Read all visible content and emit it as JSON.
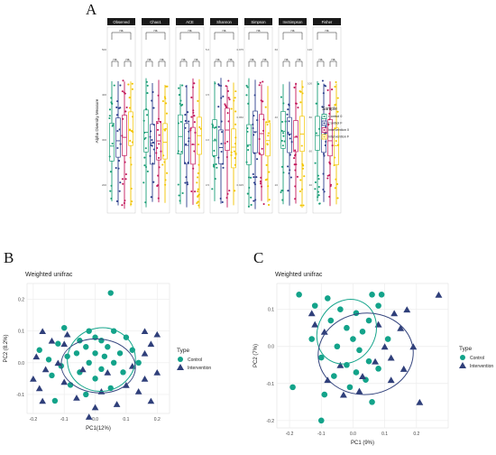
{
  "panel_letters": {
    "a": "A",
    "b": "B",
    "c": "C"
  },
  "colors": {
    "control_0": "#1b9e77",
    "control_f": "#2c3e8c",
    "intervention_0": "#c2185b",
    "intervention_f": "#f2c500",
    "control": "#13a38a",
    "intervention": "#2f3f7a",
    "strip": "#1a1a1a",
    "grid": "#ececec",
    "ellipse_control": "#17a58c",
    "ellipse_intervention": "#36467f"
  },
  "chart_data": [
    {
      "type": "box",
      "ylabel": "Alpha Diversity Measure",
      "panels": [
        {
          "name": "Observed",
          "sig": [
            "ns",
            "ns",
            "ns"
          ],
          "yticks": [
            "500",
            "400",
            "300",
            "200"
          ]
        },
        {
          "name": "Chao1",
          "sig": [
            "ns",
            "ns",
            "ns"
          ],
          "yticks": []
        },
        {
          "name": "ACE",
          "sig": [
            "ns",
            "ns",
            "ns"
          ],
          "yticks": []
        },
        {
          "name": "Shannon",
          "sig": [
            "ns",
            "ns",
            "ns"
          ],
          "yticks": [
            "5.0",
            "4.5",
            "4.0",
            "3.5"
          ]
        },
        {
          "name": "Simpson",
          "sig": [
            "ns",
            "ns",
            "ns"
          ],
          "yticks": [
            "0.975",
            "0.950",
            "0.925"
          ]
        },
        {
          "name": "InvSimpson",
          "sig": [
            "ns",
            "ns",
            "ns"
          ],
          "yticks": [
            "60",
            "40",
            "20"
          ]
        },
        {
          "name": "Fisher",
          "sig": [
            "ns",
            "ns",
            "ns"
          ],
          "yticks": [
            "120",
            "100",
            "80",
            "60",
            "40"
          ]
        }
      ],
      "legend_title": "Sample",
      "legend": [
        "Control 0",
        "Control F",
        "Intervention 0",
        "Intervention F"
      ]
    },
    {
      "type": "scatter",
      "title": "Weighted unifrac",
      "xlabel": "PC1(12%)",
      "ylabel": "PC2 (8.2%)",
      "xticks": [
        "-0.2",
        "-0.1",
        "0.0",
        "0.1",
        "0.2"
      ],
      "yticks": [
        "0.2",
        "0.1",
        "0.0",
        "-0.1"
      ],
      "xlim": [
        -0.22,
        0.24
      ],
      "ylim": [
        -0.16,
        0.25
      ],
      "legend_title": "Type",
      "legend": [
        "Control",
        "Intervention"
      ],
      "series": [
        {
          "name": "Control",
          "points": [
            [
              0.05,
              0.22
            ],
            [
              -0.1,
              0.11
            ],
            [
              -0.02,
              0.1
            ],
            [
              0.06,
              0.1
            ],
            [
              0.0,
              0.08
            ],
            [
              -0.05,
              0.07
            ],
            [
              0.02,
              0.07
            ],
            [
              0.1,
              0.08
            ],
            [
              -0.12,
              0.06
            ],
            [
              -0.03,
              0.05
            ],
            [
              0.04,
              0.05
            ],
            [
              0.12,
              0.04
            ],
            [
              -0.18,
              0.04
            ],
            [
              -0.06,
              0.03
            ],
            [
              0.0,
              0.03
            ],
            [
              0.08,
              0.03
            ],
            [
              -0.09,
              0.02
            ],
            [
              0.03,
              0.02
            ],
            [
              -0.15,
              0.01
            ],
            [
              -0.02,
              0.0
            ],
            [
              0.06,
              0.0
            ],
            [
              0.14,
              0.0
            ],
            [
              -0.11,
              -0.01
            ],
            [
              0.02,
              -0.02
            ],
            [
              -0.05,
              -0.03
            ],
            [
              0.09,
              -0.03
            ],
            [
              -0.14,
              -0.04
            ],
            [
              0.0,
              -0.05
            ],
            [
              -0.08,
              -0.07
            ],
            [
              0.05,
              -0.08
            ],
            [
              -0.03,
              -0.1
            ],
            [
              -0.13,
              -0.12
            ]
          ]
        },
        {
          "name": "Intervention",
          "points": [
            [
              -0.17,
              0.1
            ],
            [
              -0.14,
              0.07
            ],
            [
              -0.09,
              0.09
            ],
            [
              0.16,
              0.1
            ],
            [
              0.2,
              0.09
            ],
            [
              -0.1,
              0.06
            ],
            [
              0.18,
              0.06
            ],
            [
              -0.19,
              0.02
            ],
            [
              -0.12,
              0.0
            ],
            [
              0.16,
              0.03
            ],
            [
              -0.16,
              -0.02
            ],
            [
              0.12,
              -0.01
            ],
            [
              0.2,
              -0.03
            ],
            [
              -0.2,
              -0.05
            ],
            [
              -0.04,
              -0.02
            ],
            [
              0.04,
              -0.03
            ],
            [
              0.16,
              -0.05
            ],
            [
              -0.1,
              -0.06
            ],
            [
              0.1,
              -0.07
            ],
            [
              -0.18,
              -0.08
            ],
            [
              0.02,
              -0.09
            ],
            [
              0.14,
              -0.09
            ],
            [
              -0.06,
              -0.11
            ],
            [
              0.07,
              -0.13
            ],
            [
              -0.17,
              -0.12
            ],
            [
              0.0,
              -0.14
            ],
            [
              0.18,
              -0.12
            ],
            [
              -0.02,
              -0.17
            ]
          ]
        }
      ],
      "ellipses": [
        {
          "name": "Control",
          "cx": 0.02,
          "cy": 0.01,
          "rx": 0.11,
          "ry": 0.1,
          "rot": -10
        },
        {
          "name": "Intervention",
          "cx": 0.01,
          "cy": -0.01,
          "rx": 0.12,
          "ry": 0.085,
          "rot": 5
        }
      ]
    },
    {
      "type": "scatter",
      "title": "Weighted unifrac",
      "xlabel": "PC1 (9%)",
      "ylabel": "PC2 (7%)",
      "xticks": [
        "-0.2",
        "-0.1",
        "0.0",
        "0.1",
        "0.2"
      ],
      "yticks": [
        "0.1",
        "0.0",
        "-0.1",
        "-0.2"
      ],
      "xlim": [
        -0.24,
        0.3
      ],
      "ylim": [
        -0.22,
        0.17
      ],
      "legend_title": "Type",
      "legend": [
        "Control",
        "Intervention"
      ],
      "series": [
        {
          "name": "Control",
          "points": [
            [
              -0.17,
              0.14
            ],
            [
              -0.08,
              0.13
            ],
            [
              0.06,
              0.14
            ],
            [
              0.09,
              0.14
            ],
            [
              -0.12,
              0.11
            ],
            [
              0.08,
              0.11
            ],
            [
              -0.04,
              0.1
            ],
            [
              0.01,
              0.09
            ],
            [
              -0.07,
              0.07
            ],
            [
              0.05,
              0.07
            ],
            [
              -0.02,
              0.05
            ],
            [
              0.03,
              0.04
            ],
            [
              -0.13,
              0.02
            ],
            [
              0.0,
              0.02
            ],
            [
              0.11,
              0.02
            ],
            [
              -0.05,
              0.0
            ],
            [
              0.02,
              -0.01
            ],
            [
              -0.1,
              -0.03
            ],
            [
              0.05,
              -0.04
            ],
            [
              -0.02,
              -0.05
            ],
            [
              0.08,
              -0.06
            ],
            [
              0.01,
              -0.07
            ],
            [
              -0.06,
              -0.08
            ],
            [
              0.04,
              -0.09
            ],
            [
              -0.01,
              -0.11
            ],
            [
              -0.19,
              -0.11
            ],
            [
              -0.09,
              -0.13
            ],
            [
              0.06,
              -0.15
            ],
            [
              -0.1,
              -0.2
            ]
          ]
        },
        {
          "name": "Intervention",
          "points": [
            [
              -0.13,
              0.09
            ],
            [
              0.13,
              0.09
            ],
            [
              0.17,
              0.1
            ],
            [
              0.27,
              0.14
            ],
            [
              -0.12,
              0.06
            ],
            [
              0.08,
              0.06
            ],
            [
              0.15,
              0.05
            ],
            [
              0.19,
              0.0
            ],
            [
              0.1,
              0.0
            ],
            [
              -0.09,
              0.04
            ],
            [
              0.12,
              -0.03
            ],
            [
              -0.04,
              -0.05
            ],
            [
              0.07,
              -0.04
            ],
            [
              0.16,
              -0.06
            ],
            [
              -0.08,
              -0.09
            ],
            [
              0.03,
              -0.08
            ],
            [
              0.12,
              -0.09
            ],
            [
              0.02,
              -0.12
            ],
            [
              -0.03,
              -0.13
            ],
            [
              0.21,
              -0.15
            ]
          ]
        }
      ],
      "ellipses": [
        {
          "name": "Control",
          "cx": -0.02,
          "cy": 0.04,
          "rx": 0.09,
          "ry": 0.09,
          "rot": 30
        },
        {
          "name": "Intervention",
          "cx": 0.04,
          "cy": -0.02,
          "rx": 0.15,
          "ry": 0.11,
          "rot": -5
        }
      ]
    }
  ]
}
